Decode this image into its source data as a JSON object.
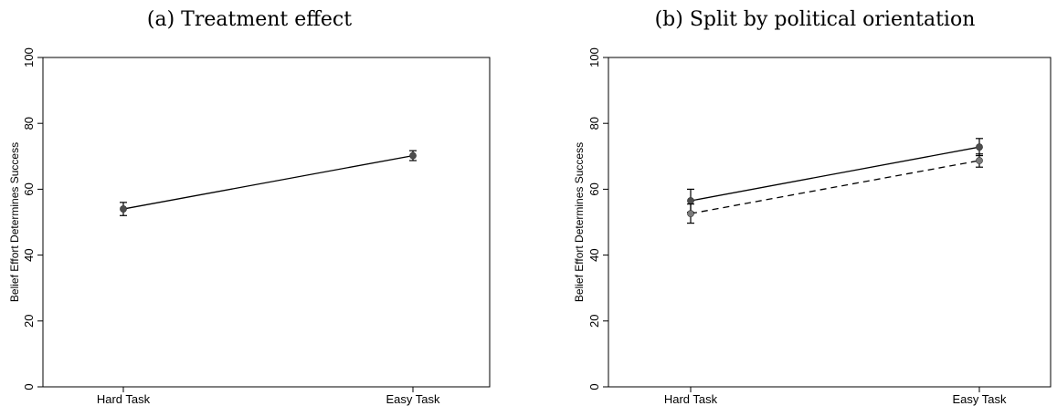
{
  "chart_data": [
    {
      "type": "line",
      "title": "(a) Treatment effect",
      "xlabel": "",
      "ylabel": "Belief Effort Determines Success",
      "categories": [
        "Hard Task",
        "Easy Task"
      ],
      "ylim": [
        0,
        100
      ],
      "yticks": [
        "0",
        "20",
        "40",
        "60",
        "80",
        "100"
      ],
      "grid": false,
      "series": [
        {
          "style": "solid",
          "color": "#000000",
          "marker_color": "#4d4d4d",
          "values": [
            54.0,
            70.2
          ],
          "ci_low": [
            52.0,
            68.7
          ],
          "ci_high": [
            56.0,
            71.7
          ]
        }
      ]
    },
    {
      "type": "line",
      "title": "(b) Split by political orientation",
      "xlabel": "",
      "ylabel": "Belief Effort Determines Success",
      "categories": [
        "Hard Task",
        "Easy Task"
      ],
      "ylim": [
        0,
        100
      ],
      "yticks": [
        "0",
        "20",
        "40",
        "60",
        "80",
        "100"
      ],
      "grid": false,
      "series": [
        {
          "style": "solid",
          "color": "#000000",
          "marker_color": "#4d4d4d",
          "values": [
            56.5,
            72.8
          ],
          "ci_low": [
            53.0,
            70.2
          ],
          "ci_high": [
            60.0,
            75.4
          ]
        },
        {
          "style": "dashed",
          "color": "#000000",
          "marker_color": "#7a7a7a",
          "values": [
            52.6,
            68.7
          ],
          "ci_low": [
            49.7,
            66.7
          ],
          "ci_high": [
            55.5,
            70.7
          ]
        }
      ]
    }
  ]
}
